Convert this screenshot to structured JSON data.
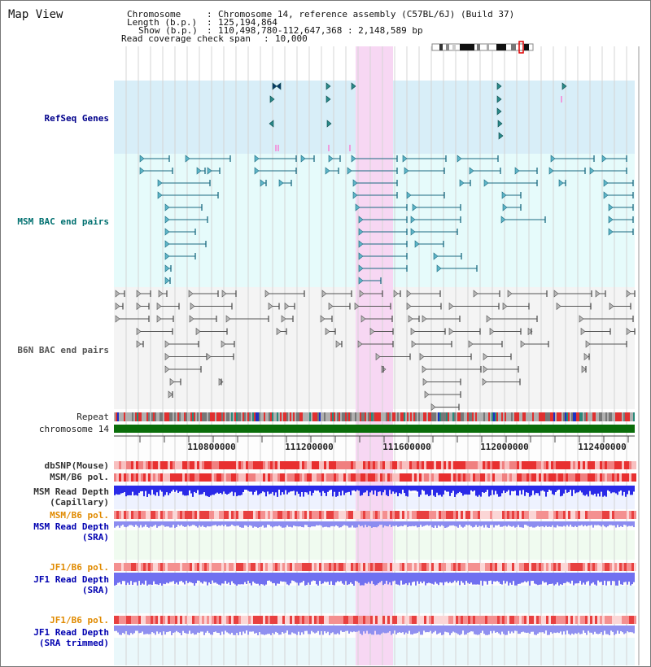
{
  "view_title": "Map View",
  "header": {
    "line1_key": "Chromosome",
    "line1_val": "Chromosome 14, reference assembly (C57BL/6J) (Build 37)",
    "line2_key": "Length (b.p.)",
    "line2_val": "125,194,864",
    "line3_key": "Show (b.p.)",
    "line3_val": "110,498,780-112,647,368 : 2,148,589 bp",
    "line4_key": "Read coverage check span",
    "line4_val": "10,000"
  },
  "tracks": {
    "refseq": "RefSeq Genes",
    "msm_bac": "MSM BAC end pairs",
    "b6n_bac": "B6N BAC end pairs",
    "repeat": "Repeat",
    "chromosome": "chromosome 14",
    "dbsnp": "dbSNP(Mouse)",
    "msm_b6_pol": "MSM/B6 pol.",
    "msm_read_depth_cap_1": "MSM Read Depth",
    "msm_read_depth_cap_2": "(Capillary)",
    "msm_b6_pol_sra": "MSM/B6 pol.",
    "msm_read_depth_sra_1": "MSM Read Depth",
    "msm_read_depth_sra_2": "(SRA)",
    "jf1_b6_pol": "JF1/B6 pol.",
    "jf1_read_depth_1": "JF1 Read Depth",
    "jf1_read_depth_2": "(SRA)",
    "jf1_b6_pol_trim": "JF1/B6 pol.",
    "jf1_read_depth_trim_1": "JF1 Read Depth",
    "jf1_read_depth_trim_2": "(SRA trimmed)"
  },
  "ruler_ticks": [
    "110800000",
    "111200000",
    "111600000",
    "112000000",
    "112400000"
  ],
  "colors": {
    "refseq_bg": "#d8eef8",
    "msm_bg": "#e6fbfb",
    "b6n_bg": "#f4f4f4",
    "highlight": "#f7d7f3",
    "chromosome_bar": "#0a6d0a",
    "msm_label": "#007070",
    "refseq_label": "#00008b",
    "orange_label": "#e08a00",
    "blue_label": "#0000b0"
  }
}
